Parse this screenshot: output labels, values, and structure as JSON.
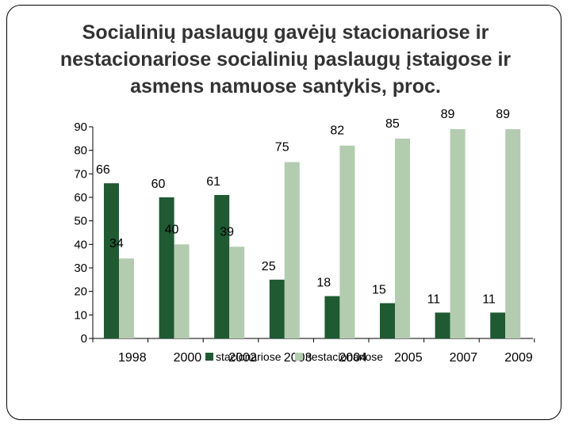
{
  "slide": {
    "title_lines": [
      "Socialinių paslaugų gavėjų stacionariose ir",
      "nestacionariose socialinių paslaugų įstaigose ir",
      "asmens namuose santykis, proc."
    ]
  },
  "chart_data": {
    "type": "bar",
    "title": "Socialinių paslaugų gavėjų stacionariose ir nestacionariose socialinių paslaugų įstaigose ir asmens namuose santykis, proc.",
    "categories": [
      "1998",
      "2000",
      "2002",
      "2003",
      "2004",
      "2005",
      "2007",
      "2009"
    ],
    "series": [
      {
        "name": "stacionariose",
        "values": [
          66,
          60,
          61,
          25,
          18,
          15,
          11,
          11
        ],
        "color": "#1f5a32"
      },
      {
        "name": "nestacionariose",
        "values": [
          34,
          40,
          39,
          75,
          82,
          85,
          89,
          89
        ],
        "color": "#b3ccb0"
      }
    ],
    "yticks": [
      0,
      10,
      20,
      30,
      40,
      50,
      60,
      70,
      80,
      90
    ],
    "ylim": [
      0,
      90
    ],
    "legend_position": "bottom-center",
    "grid": false
  }
}
